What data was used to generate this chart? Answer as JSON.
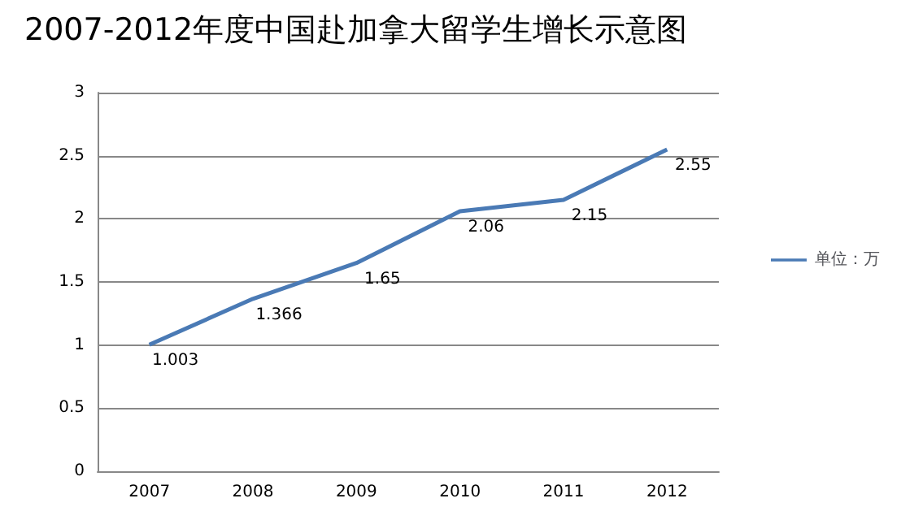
{
  "chart_data": {
    "type": "line",
    "title": "2007-2012年度中国赴加拿大留学生增长示意图",
    "categories": [
      "2007",
      "2008",
      "2009",
      "2010",
      "2011",
      "2012"
    ],
    "series": [
      {
        "name": "单位：万",
        "color": "#4a7ab5",
        "values": [
          1.003,
          1.366,
          1.65,
          2.06,
          2.15,
          2.55
        ]
      }
    ],
    "ylim": [
      0,
      3
    ],
    "yticks": [
      0,
      0.5,
      1,
      1.5,
      2,
      2.5,
      3
    ],
    "grid": "y",
    "legend": "right",
    "marker": "none",
    "line_style": "solid",
    "data_labels": true
  }
}
